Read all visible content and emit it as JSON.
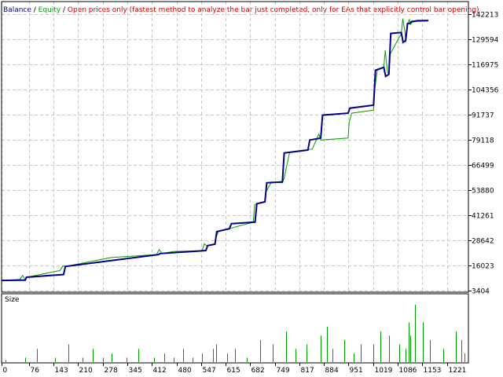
{
  "header": {
    "balance_label": "Balance",
    "sep1": " / ",
    "equity_label": "Equity",
    "sep2": " / ",
    "mode_text": "Open prices only (fastest method to analyze the bar just completed, only for EAs that explicitly control bar opening)"
  },
  "colors": {
    "balance": "#00008b",
    "equity": "#00a000",
    "mode_text": "#cc0000",
    "grid": "#c8c8c8",
    "axis": "#000000",
    "size_bars": "#00a000"
  },
  "chart_data": [
    {
      "type": "line",
      "ylim": [
        3404,
        142213
      ],
      "xlim": [
        0,
        1280
      ],
      "yticks": [
        3404,
        16023,
        28642,
        41261,
        53880,
        66499,
        79118,
        91737,
        104356,
        116975,
        129594,
        142213
      ],
      "yticks_text": [
        "3404",
        "16023",
        "28642",
        "41261",
        "53880",
        "66499",
        "79118",
        "91737",
        "104356",
        "116975",
        "129594",
        "142213"
      ],
      "grid": true,
      "series": [
        {
          "name": "Balance",
          "x": [
            0,
            65,
            68,
            170,
            175,
            430,
            435,
            560,
            565,
            585,
            590,
            625,
            630,
            695,
            700,
            722,
            727,
            770,
            775,
            840,
            845,
            875,
            880,
            950,
            955,
            1020,
            1025,
            1048,
            1053,
            1062,
            1067,
            1096,
            1101,
            1108,
            1113,
            1119,
            1124,
            1134,
            1139,
            1170
          ],
          "y": [
            8500,
            8700,
            10100,
            11500,
            15500,
            21500,
            22000,
            23500,
            26000,
            26700,
            33000,
            34500,
            37000,
            37800,
            47000,
            48000,
            57500,
            58000,
            72500,
            74000,
            79000,
            80000,
            91500,
            92500,
            95000,
            96500,
            114000,
            115500,
            111000,
            112000,
            132500,
            133000,
            128000,
            129000,
            137500,
            137600,
            138500,
            138700,
            138900,
            139000
          ]
        },
        {
          "name": "Equity",
          "x": [
            0,
            50,
            58,
            65,
            68,
            160,
            168,
            175,
            300,
            425,
            432,
            440,
            470,
            550,
            556,
            562,
            585,
            588,
            594,
            690,
            694,
            700,
            722,
            725,
            740,
            770,
            775,
            790,
            852,
            870,
            875,
            950,
            953,
            960,
            1020,
            1024,
            1030,
            1048,
            1052,
            1058,
            1062,
            1065,
            1096,
            1100,
            1106,
            1108,
            1113,
            1118,
            1121,
            1125,
            1134,
            1170
          ],
          "y": [
            8500,
            9000,
            11000,
            8700,
            10100,
            13500,
            15800,
            15500,
            20000,
            21500,
            24000,
            22000,
            23000,
            23500,
            27000,
            26000,
            26700,
            30000,
            33000,
            37800,
            46500,
            47000,
            48000,
            53000,
            58000,
            57500,
            60000,
            73000,
            74500,
            82000,
            79000,
            80000,
            88000,
            92500,
            94000,
            105500,
            114000,
            115500,
            124000,
            113000,
            112000,
            122000,
            132500,
            140000,
            133000,
            128000,
            137000,
            139500,
            137000,
            138000,
            138500,
            138800
          ]
        }
      ]
    },
    {
      "type": "bar",
      "title": "Size",
      "xlim": [
        0,
        1280
      ],
      "xticks": [
        0,
        76,
        143,
        210,
        278,
        345,
        412,
        480,
        547,
        615,
        682,
        749,
        817,
        884,
        951,
        1019,
        1086,
        1153,
        1221
      ],
      "xticks_text": [
        "0",
        "76",
        "143",
        "210",
        "278",
        "345",
        "412",
        "480",
        "547",
        "615",
        "682",
        "749",
        "817",
        "884",
        "951",
        "1019",
        "1086",
        "1153",
        "1221"
      ],
      "x": [
        10,
        65,
        96,
        147,
        184,
        223,
        251,
        277,
        302,
        342,
        376,
        418,
        445,
        471,
        497,
        523,
        549,
        579,
        589,
        618,
        640,
        672,
        710,
        743,
        781,
        806,
        837,
        874,
        892,
        907,
        940,
        965,
        985,
        1020,
        1038,
        1063,
        1090,
        1108,
        1117,
        1121,
        1134,
        1154,
        1174,
        1210,
        1245,
        1260,
        1270
      ],
      "values": [
        0.5,
        1,
        3,
        1,
        4,
        1,
        3,
        1,
        2,
        1,
        3,
        1,
        2,
        1,
        3,
        1,
        2,
        3,
        4,
        2,
        3,
        1,
        5,
        4,
        7,
        3,
        4,
        6,
        8,
        3,
        5,
        2,
        4,
        4,
        7,
        6,
        4,
        3,
        9,
        6,
        13,
        9,
        5,
        3,
        7,
        5,
        2
      ]
    }
  ]
}
